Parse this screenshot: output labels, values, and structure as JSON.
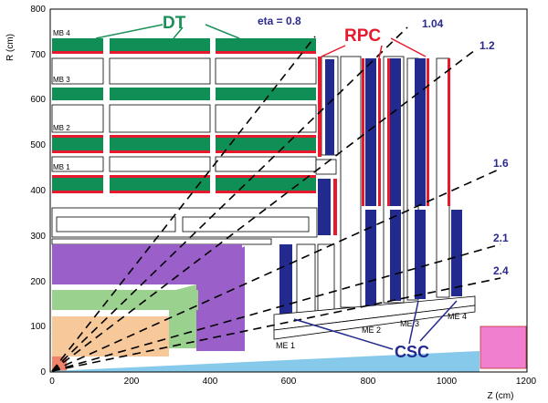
{
  "axes": {
    "r_label": "R (cm)",
    "z_label": "Z (cm)",
    "r_ticks": [
      "0",
      "100",
      "200",
      "300",
      "400",
      "500",
      "600",
      "700",
      "800"
    ],
    "z_ticks": [
      "0",
      "200",
      "400",
      "600",
      "800",
      "1000",
      "1200"
    ]
  },
  "detectors": {
    "dt": "DT",
    "rpc": "RPC",
    "csc": "CSC"
  },
  "barrel_stations": [
    "MB 4",
    "MB 3",
    "MB 2",
    "MB 1"
  ],
  "endcap_stations": [
    "ME 1",
    "ME 2",
    "ME 3",
    "ME 4"
  ],
  "eta_lines": [
    "eta = 0.8",
    "1.04",
    "1.2",
    "1.6",
    "2.1",
    "2.4"
  ],
  "colors": {
    "dt_green": "#0f8f55",
    "rpc_red": "#e8192c",
    "csc_blue": "#232a8e",
    "eta_label": "#2a2a8c",
    "purple": "#9a5fc9",
    "light_green": "#9bd18f",
    "orange": "#f7c99a",
    "light_blue": "#86c9ea",
    "pink": "#f17fcf"
  }
}
